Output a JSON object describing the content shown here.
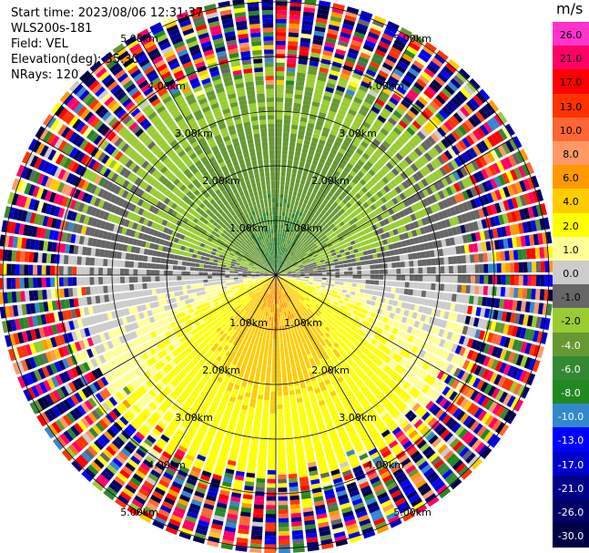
{
  "info": {
    "start_time": "Start time: 2023/08/06 12:31:37",
    "instrument": "WLS200s-181",
    "field": "Field: VEL",
    "elevation": "Elevation(deg): 35.30",
    "nrays": "NRays: 120"
  },
  "colorbar": {
    "unit": "m/s",
    "ticks": [
      "26.0",
      "21.0",
      "17.0",
      "13.0",
      "10.0",
      "8.0",
      "6.0",
      "4.0",
      "2.0",
      "1.0",
      "0.0",
      "-1.0",
      "-2.0",
      "-4.0",
      "-6.0",
      "-8.0",
      "-10.0",
      "-13.0",
      "-17.0",
      "-21.0",
      "-26.0",
      "-30.0"
    ],
    "colors": [
      "#ff33cc",
      "#ff0066",
      "#ff0000",
      "#ff3300",
      "#ff6633",
      "#ff9966",
      "#ff9900",
      "#ffcc00",
      "#ffff00",
      "#ffff99",
      "#cccccc",
      "#666666",
      "#99cc33",
      "#669933",
      "#338833",
      "#228822",
      "#3388cc",
      "#0000ff",
      "#0000cc",
      "#000088",
      "#000066",
      "#000044"
    ]
  },
  "chart_data": {
    "type": "heatmap",
    "title": "",
    "field": "VEL",
    "unit": "m/s",
    "nrays": 120,
    "range_rings_km": [
      1.0,
      2.0,
      3.0,
      4.0,
      5.0
    ],
    "range_labels": [
      "1.00km",
      "2.00km",
      "3.00km",
      "4.00km",
      "5.00km"
    ],
    "max_range_km": 5.0,
    "spoke_azimuths_deg": [
      0,
      30,
      60,
      90,
      120,
      150,
      180,
      210,
      240,
      270,
      300,
      330
    ],
    "color_scale_bounds": [
      -30,
      -26,
      -21,
      -17,
      -13,
      -10,
      -8,
      -6,
      -4,
      -2,
      -1,
      0,
      1,
      2,
      4,
      6,
      8,
      10,
      13,
      17,
      21,
      26
    ],
    "velocity_pattern": {
      "north_sector_inner_ms": -5.0,
      "north_sector_outer_ms": -2.0,
      "south_sector_inner_ms": 7.0,
      "south_sector_outer_ms": 3.0,
      "east_west_ms": 0.0,
      "noise_beyond_km": 3.4
    }
  }
}
